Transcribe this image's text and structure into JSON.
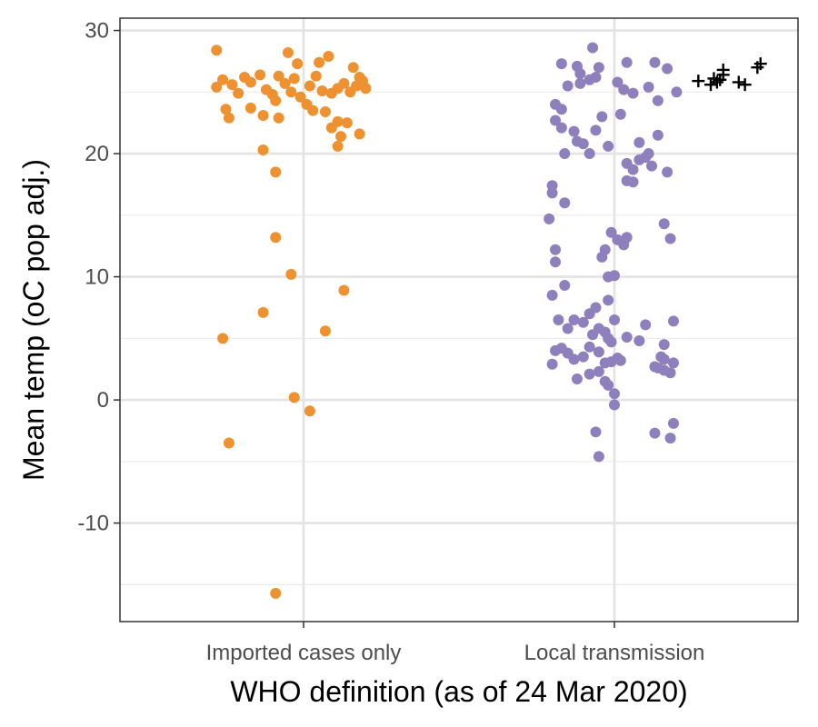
{
  "chart_data": {
    "type": "scatter",
    "title": "",
    "xlabel": "WHO definition (as of 24 Mar 2020)",
    "ylabel": "Mean temp (oC pop adj.)",
    "categories": [
      "Imported cases only",
      "Local transmission"
    ],
    "ylim": [
      -18,
      31
    ],
    "yticks": [
      -10,
      0,
      10,
      20,
      30
    ],
    "ytick_labels": [
      "-10",
      "0",
      "10",
      "20",
      "30"
    ],
    "y_minor_ticks": [
      -15,
      -5,
      5,
      15,
      25
    ],
    "grid": true,
    "series": [
      {
        "category": "Imported cases only",
        "color": "#EE9130",
        "marker": "circle",
        "points": [
          [
            -0.28,
            28.4
          ],
          [
            -0.05,
            28.2
          ],
          [
            0.08,
            27.9
          ],
          [
            -0.02,
            27.3
          ],
          [
            0.05,
            27.4
          ],
          [
            0.16,
            27.0
          ],
          [
            -0.28,
            25.4
          ],
          [
            -0.26,
            26.0
          ],
          [
            -0.23,
            25.6
          ],
          [
            -0.19,
            26.2
          ],
          [
            -0.17,
            25.8
          ],
          [
            -0.14,
            26.4
          ],
          [
            -0.12,
            25.2
          ],
          [
            -0.1,
            24.8
          ],
          [
            -0.08,
            26.3
          ],
          [
            -0.06,
            25.7
          ],
          [
            -0.04,
            25.0
          ],
          [
            -0.03,
            26.1
          ],
          [
            -0.01,
            24.6
          ],
          [
            0.02,
            25.5
          ],
          [
            0.04,
            26.3
          ],
          [
            0.06,
            25.1
          ],
          [
            0.09,
            24.9
          ],
          [
            0.11,
            25.3
          ],
          [
            0.13,
            25.7
          ],
          [
            0.15,
            25.0
          ],
          [
            0.17,
            25.5
          ],
          [
            0.19,
            25.9
          ],
          [
            0.2,
            25.3
          ],
          [
            0.18,
            26.2
          ],
          [
            -0.21,
            24.9
          ],
          [
            -0.09,
            24.3
          ],
          [
            0.01,
            24.0
          ],
          [
            -0.25,
            23.6
          ],
          [
            -0.17,
            23.7
          ],
          [
            -0.13,
            23.1
          ],
          [
            -0.24,
            22.9
          ],
          [
            -0.08,
            22.9
          ],
          [
            0.03,
            23.5
          ],
          [
            0.07,
            23.4
          ],
          [
            0.09,
            22.1
          ],
          [
            0.11,
            22.6
          ],
          [
            0.14,
            22.5
          ],
          [
            0.12,
            21.4
          ],
          [
            0.18,
            21.6
          ],
          [
            0.11,
            20.6
          ],
          [
            -0.13,
            20.3
          ],
          [
            -0.09,
            18.5
          ],
          [
            -0.09,
            13.2
          ],
          [
            -0.04,
            10.2
          ],
          [
            0.13,
            8.9
          ],
          [
            -0.13,
            7.1
          ],
          [
            -0.26,
            5.0
          ],
          [
            0.07,
            5.6
          ],
          [
            -0.03,
            0.2
          ],
          [
            0.02,
            -0.9
          ],
          [
            -0.24,
            -3.5
          ],
          [
            -0.09,
            -15.7
          ]
        ]
      },
      {
        "category": "Local transmission",
        "color": "#8E80BD",
        "marker": "circle",
        "points": [
          [
            -0.07,
            28.6
          ],
          [
            -0.17,
            27.3
          ],
          [
            -0.12,
            27.1
          ],
          [
            -0.05,
            27.0
          ],
          [
            0.04,
            27.4
          ],
          [
            0.13,
            27.4
          ],
          [
            0.17,
            26.9
          ],
          [
            -0.11,
            26.5
          ],
          [
            -0.06,
            26.2
          ],
          [
            -0.15,
            25.5
          ],
          [
            -0.11,
            25.7
          ],
          [
            -0.08,
            26.0
          ],
          [
            0.01,
            25.8
          ],
          [
            0.03,
            25.2
          ],
          [
            0.06,
            24.9
          ],
          [
            0.11,
            25.4
          ],
          [
            0.14,
            24.3
          ],
          [
            0.2,
            25.0
          ],
          [
            -0.19,
            24.0
          ],
          [
            -0.17,
            23.6
          ],
          [
            -0.04,
            23.0
          ],
          [
            0.02,
            23.2
          ],
          [
            -0.19,
            22.7
          ],
          [
            -0.17,
            22.1
          ],
          [
            -0.13,
            21.8
          ],
          [
            -0.12,
            21.0
          ],
          [
            -0.06,
            21.9
          ],
          [
            -0.02,
            20.6
          ],
          [
            0.14,
            21.5
          ],
          [
            -0.1,
            20.8
          ],
          [
            -0.08,
            20.0
          ],
          [
            -0.16,
            20.0
          ],
          [
            0.08,
            20.9
          ],
          [
            0.1,
            19.7
          ],
          [
            0.11,
            20.0
          ],
          [
            0.04,
            19.2
          ],
          [
            0.06,
            18.7
          ],
          [
            0.08,
            19.5
          ],
          [
            0.12,
            19.0
          ],
          [
            0.17,
            18.5
          ],
          [
            -0.2,
            17.4
          ],
          [
            -0.2,
            16.8
          ],
          [
            -0.16,
            16.0
          ],
          [
            0.04,
            17.8
          ],
          [
            0.06,
            17.7
          ],
          [
            -0.21,
            14.7
          ],
          [
            -0.19,
            12.2
          ],
          [
            -0.19,
            11.2
          ],
          [
            0.16,
            14.3
          ],
          [
            0.18,
            13.1
          ],
          [
            -0.01,
            13.6
          ],
          [
            0.01,
            13.0
          ],
          [
            0.03,
            12.6
          ],
          [
            0.04,
            13.2
          ],
          [
            -0.03,
            12.2
          ],
          [
            -0.04,
            11.6
          ],
          [
            -0.02,
            10.0
          ],
          [
            0.0,
            10.1
          ],
          [
            -0.2,
            8.5
          ],
          [
            -0.16,
            9.3
          ],
          [
            -0.18,
            6.5
          ],
          [
            -0.13,
            6.5
          ],
          [
            -0.08,
            7.0
          ],
          [
            -0.06,
            7.5
          ],
          [
            -0.02,
            8.1
          ],
          [
            0.0,
            6.5
          ],
          [
            -0.05,
            5.8
          ],
          [
            -0.03,
            5.5
          ],
          [
            -0.1,
            6.3
          ],
          [
            -0.15,
            5.8
          ],
          [
            0.1,
            6.1
          ],
          [
            0.19,
            6.4
          ],
          [
            -0.07,
            5.3
          ],
          [
            -0.02,
            5.0
          ],
          [
            -0.01,
            4.7
          ],
          [
            0.04,
            5.1
          ],
          [
            0.08,
            4.8
          ],
          [
            0.16,
            4.5
          ],
          [
            -0.19,
            4.0
          ],
          [
            -0.17,
            4.2
          ],
          [
            -0.15,
            3.8
          ],
          [
            -0.13,
            3.3
          ],
          [
            -0.1,
            3.5
          ],
          [
            -0.05,
            3.9
          ],
          [
            -0.08,
            4.3
          ],
          [
            -0.2,
            2.9
          ],
          [
            -0.03,
            3.0
          ],
          [
            -0.01,
            3.1
          ],
          [
            0.02,
            3.2
          ],
          [
            0.01,
            3.4
          ],
          [
            -0.12,
            1.7
          ],
          [
            -0.08,
            2.1
          ],
          [
            -0.05,
            2.3
          ],
          [
            -0.03,
            1.5
          ],
          [
            -0.02,
            1.2
          ],
          [
            0.0,
            0.5
          ],
          [
            0.0,
            -0.4
          ],
          [
            0.13,
            2.7
          ],
          [
            0.14,
            2.6
          ],
          [
            0.16,
            2.4
          ],
          [
            0.18,
            2.2
          ],
          [
            0.19,
            3.0
          ],
          [
            0.16,
            3.3
          ],
          [
            0.15,
            3.5
          ],
          [
            -0.06,
            -2.6
          ],
          [
            -0.05,
            -4.6
          ],
          [
            0.13,
            -2.7
          ],
          [
            0.19,
            -1.9
          ],
          [
            0.18,
            -3.1
          ]
        ]
      },
      {
        "category": "Local transmission",
        "color": "#000000",
        "marker": "plus",
        "points": [
          [
            0.27,
            25.9
          ],
          [
            0.31,
            25.6
          ],
          [
            0.32,
            26.1
          ],
          [
            0.33,
            25.8
          ],
          [
            0.34,
            26.0
          ],
          [
            0.35,
            26.4
          ],
          [
            0.35,
            26.8
          ],
          [
            0.4,
            25.8
          ],
          [
            0.42,
            25.6
          ],
          [
            0.46,
            27.0
          ],
          [
            0.47,
            27.3
          ]
        ]
      }
    ]
  }
}
